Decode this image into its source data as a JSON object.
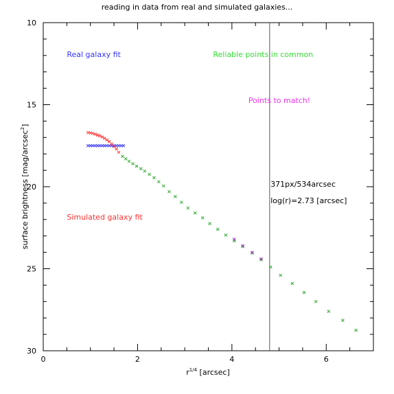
{
  "chart_data": {
    "type": "scatter",
    "title": "reading in data from real and simulated galaxies...",
    "xlabel": "r",
    "xlabel_sup": "1/4",
    "xlabel_suffix": " [arcsec]",
    "ylabel": "surface brightness [mag/arcsec",
    "ylabel_sup": "2",
    "ylabel_suffix": "]",
    "xlim": [
      0,
      7
    ],
    "ylim": [
      10,
      30
    ],
    "y_inverted": true,
    "xticks": [
      0,
      2,
      4,
      6
    ],
    "yticks": [
      10,
      15,
      20,
      25,
      30
    ],
    "grid": false,
    "vline_x": 4.8,
    "annotations": [
      {
        "text": "Real galaxy fit",
        "color": "#3333ff",
        "x": 0.5,
        "y": 12.1
      },
      {
        "text": "Reliable points in common",
        "color": "#33dd33",
        "x": 3.6,
        "y": 12.1
      },
      {
        "text": "Points to match!",
        "color": "#ee33ee",
        "x": 4.35,
        "y": 14.9
      },
      {
        "text": "Simulated galaxy fit",
        "color": "#ff3333",
        "x": 0.5,
        "y": 22.0
      },
      {
        "text": "371px/534arcsec",
        "color": "#000000",
        "x": 4.82,
        "y": 20.0
      },
      {
        "text": "log(r)=2.73 [arcsec]",
        "color": "#000000",
        "x": 4.82,
        "y": 21.0
      }
    ],
    "series": [
      {
        "color": "#3333ff",
        "x": [
          0.95,
          1.0,
          1.05,
          1.1,
          1.15,
          1.2,
          1.25,
          1.3,
          1.35,
          1.4,
          1.45,
          1.5,
          1.55,
          1.6,
          1.65,
          1.7
        ],
        "y": [
          17.5,
          17.5,
          17.5,
          17.5,
          17.5,
          17.5,
          17.5,
          17.5,
          17.5,
          17.5,
          17.5,
          17.5,
          17.5,
          17.5,
          17.5,
          17.5
        ]
      },
      {
        "color": "#ff3333",
        "x": [
          0.95,
          1.0,
          1.05,
          1.1,
          1.15,
          1.2,
          1.25,
          1.3,
          1.35,
          1.4,
          1.45,
          1.5,
          1.55,
          1.6
        ],
        "y": [
          16.7,
          16.72,
          16.75,
          16.8,
          16.85,
          16.9,
          16.97,
          17.05,
          17.15,
          17.25,
          17.4,
          17.55,
          17.7,
          17.9
        ]
      },
      {
        "color": "#33aa33",
        "x": [
          1.68,
          1.75,
          1.82,
          1.9,
          1.98,
          2.07,
          2.15,
          2.25,
          2.35,
          2.45,
          2.55,
          2.67,
          2.8,
          2.93,
          3.07,
          3.22,
          3.38,
          3.53,
          3.7,
          3.87,
          4.05,
          4.23,
          4.43,
          4.62,
          4.82,
          5.03,
          5.28,
          5.53,
          5.78,
          6.05,
          6.35,
          6.63
        ],
        "y": [
          18.15,
          18.3,
          18.45,
          18.6,
          18.75,
          18.9,
          19.05,
          19.25,
          19.45,
          19.7,
          19.95,
          20.3,
          20.6,
          20.95,
          21.3,
          21.6,
          21.9,
          22.25,
          22.6,
          22.95,
          23.3,
          23.65,
          24.05,
          24.45,
          24.9,
          25.4,
          25.9,
          26.45,
          27.0,
          27.6,
          28.15,
          28.75
        ]
      },
      {
        "color": "#aa33cc",
        "x": [
          4.05,
          4.23,
          4.43,
          4.62
        ],
        "y": [
          23.2,
          23.6,
          24.0,
          24.4
        ]
      }
    ]
  }
}
